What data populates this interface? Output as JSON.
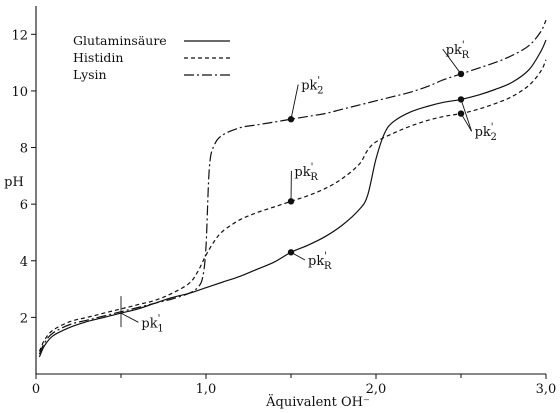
{
  "chart_data": {
    "type": "line",
    "title": "",
    "xlabel": "Äquivalent OH⁻",
    "ylabel": "pH",
    "xlim": [
      0,
      3.0
    ],
    "ylim": [
      0,
      13
    ],
    "grid": false,
    "legend_position": "top-left",
    "x_ticks": [
      {
        "value": 0,
        "label": "0"
      },
      {
        "value": 1.0,
        "label": "1,0"
      },
      {
        "value": 2.0,
        "label": "2,0"
      },
      {
        "value": 3.0,
        "label": "3,0"
      }
    ],
    "x_minor_ticks": [
      0.5,
      1.5,
      2.5
    ],
    "y_ticks": [
      {
        "value": 2,
        "label": "2"
      },
      {
        "value": 4,
        "label": "4"
      },
      {
        "value": 6,
        "label": "6"
      },
      {
        "value": 8,
        "label": "8"
      },
      {
        "value": 10,
        "label": "10"
      },
      {
        "value": 12,
        "label": "12"
      }
    ],
    "series": [
      {
        "name": "Glutaminsäure",
        "style": "solid",
        "points": [
          [
            0.02,
            0.6
          ],
          [
            0.05,
            1.0
          ],
          [
            0.1,
            1.35
          ],
          [
            0.2,
            1.65
          ],
          [
            0.3,
            1.85
          ],
          [
            0.4,
            2.0
          ],
          [
            0.5,
            2.15
          ],
          [
            0.6,
            2.3
          ],
          [
            0.7,
            2.5
          ],
          [
            0.8,
            2.7
          ],
          [
            0.9,
            2.85
          ],
          [
            1.0,
            3.05
          ],
          [
            1.1,
            3.25
          ],
          [
            1.2,
            3.45
          ],
          [
            1.3,
            3.7
          ],
          [
            1.4,
            3.95
          ],
          [
            1.5,
            4.3
          ],
          [
            1.6,
            4.55
          ],
          [
            1.7,
            4.85
          ],
          [
            1.8,
            5.25
          ],
          [
            1.9,
            5.8
          ],
          [
            1.95,
            6.3
          ],
          [
            2.0,
            7.6
          ],
          [
            2.05,
            8.5
          ],
          [
            2.1,
            8.9
          ],
          [
            2.2,
            9.25
          ],
          [
            2.3,
            9.45
          ],
          [
            2.4,
            9.6
          ],
          [
            2.5,
            9.7
          ],
          [
            2.6,
            9.85
          ],
          [
            2.7,
            10.05
          ],
          [
            2.8,
            10.3
          ],
          [
            2.9,
            10.75
          ],
          [
            2.97,
            11.4
          ],
          [
            3.0,
            11.8
          ]
        ]
      },
      {
        "name": "Histidin",
        "style": "dashed",
        "points": [
          [
            0.02,
            0.8
          ],
          [
            0.05,
            1.2
          ],
          [
            0.1,
            1.55
          ],
          [
            0.2,
            1.85
          ],
          [
            0.3,
            2.0
          ],
          [
            0.4,
            2.15
          ],
          [
            0.5,
            2.3
          ],
          [
            0.6,
            2.45
          ],
          [
            0.7,
            2.6
          ],
          [
            0.8,
            2.85
          ],
          [
            0.9,
            3.2
          ],
          [
            0.95,
            3.6
          ],
          [
            1.0,
            4.2
          ],
          [
            1.05,
            4.7
          ],
          [
            1.1,
            5.05
          ],
          [
            1.2,
            5.45
          ],
          [
            1.3,
            5.7
          ],
          [
            1.4,
            5.9
          ],
          [
            1.5,
            6.1
          ],
          [
            1.6,
            6.3
          ],
          [
            1.7,
            6.55
          ],
          [
            1.8,
            6.9
          ],
          [
            1.9,
            7.4
          ],
          [
            1.95,
            7.9
          ],
          [
            2.0,
            8.2
          ],
          [
            2.1,
            8.5
          ],
          [
            2.2,
            8.75
          ],
          [
            2.3,
            8.95
          ],
          [
            2.4,
            9.1
          ],
          [
            2.5,
            9.2
          ],
          [
            2.6,
            9.35
          ],
          [
            2.7,
            9.55
          ],
          [
            2.8,
            9.8
          ],
          [
            2.9,
            10.2
          ],
          [
            2.97,
            10.7
          ],
          [
            3.0,
            11.1
          ]
        ]
      },
      {
        "name": "Lysin",
        "style": "dash-dot",
        "points": [
          [
            0.02,
            0.7
          ],
          [
            0.05,
            1.1
          ],
          [
            0.1,
            1.45
          ],
          [
            0.2,
            1.75
          ],
          [
            0.3,
            1.9
          ],
          [
            0.4,
            2.05
          ],
          [
            0.5,
            2.2
          ],
          [
            0.6,
            2.35
          ],
          [
            0.7,
            2.5
          ],
          [
            0.8,
            2.65
          ],
          [
            0.9,
            2.85
          ],
          [
            0.95,
            3.05
          ],
          [
            0.98,
            3.4
          ],
          [
            1.0,
            4.5
          ],
          [
            1.02,
            7.3
          ],
          [
            1.05,
            8.1
          ],
          [
            1.1,
            8.45
          ],
          [
            1.2,
            8.7
          ],
          [
            1.3,
            8.8
          ],
          [
            1.4,
            8.9
          ],
          [
            1.5,
            9.0
          ],
          [
            1.6,
            9.1
          ],
          [
            1.7,
            9.2
          ],
          [
            1.8,
            9.35
          ],
          [
            1.9,
            9.5
          ],
          [
            2.0,
            9.65
          ],
          [
            2.1,
            9.8
          ],
          [
            2.2,
            9.95
          ],
          [
            2.3,
            10.15
          ],
          [
            2.4,
            10.4
          ],
          [
            2.5,
            10.6
          ],
          [
            2.6,
            10.8
          ],
          [
            2.7,
            11.0
          ],
          [
            2.8,
            11.25
          ],
          [
            2.9,
            11.6
          ],
          [
            2.97,
            12.1
          ],
          [
            3.0,
            12.5
          ]
        ]
      }
    ],
    "annotations": [
      {
        "name": "pk1-label",
        "main": "pk",
        "prime": "'",
        "sub": "1",
        "point": [
          0.5,
          2.15
        ],
        "mark": "tick",
        "label_at": [
          0.62,
          1.65
        ]
      },
      {
        "name": "pk2-lysin-label",
        "main": "pk",
        "prime": "'",
        "sub": "2",
        "point": [
          1.5,
          9.0
        ],
        "mark": "dot",
        "label_at": [
          1.56,
          10.05
        ]
      },
      {
        "name": "pkR-histidin-label",
        "main": "pk",
        "prime": "'",
        "sub": "R",
        "point": [
          1.5,
          6.1
        ],
        "mark": "dot",
        "label_at": [
          1.52,
          7.0
        ]
      },
      {
        "name": "pkR-glutamin-label",
        "main": "pk",
        "prime": "'",
        "sub": "R",
        "point": [
          1.5,
          4.3
        ],
        "mark": "dot",
        "label_at": [
          1.6,
          3.85
        ]
      },
      {
        "name": "pkR-lysin-label",
        "main": "pk",
        "prime": "'",
        "sub": "R",
        "point": [
          2.5,
          10.6
        ],
        "mark": "dot",
        "label_at": [
          2.41,
          11.3
        ]
      },
      {
        "name": "pk2-histidin-glutamin-label",
        "main": "pk",
        "prime": "'",
        "sub": "2",
        "points": [
          [
            2.5,
            9.7
          ],
          [
            2.5,
            9.2
          ]
        ],
        "mark": "dot",
        "label_at": [
          2.58,
          8.4
        ]
      }
    ]
  }
}
